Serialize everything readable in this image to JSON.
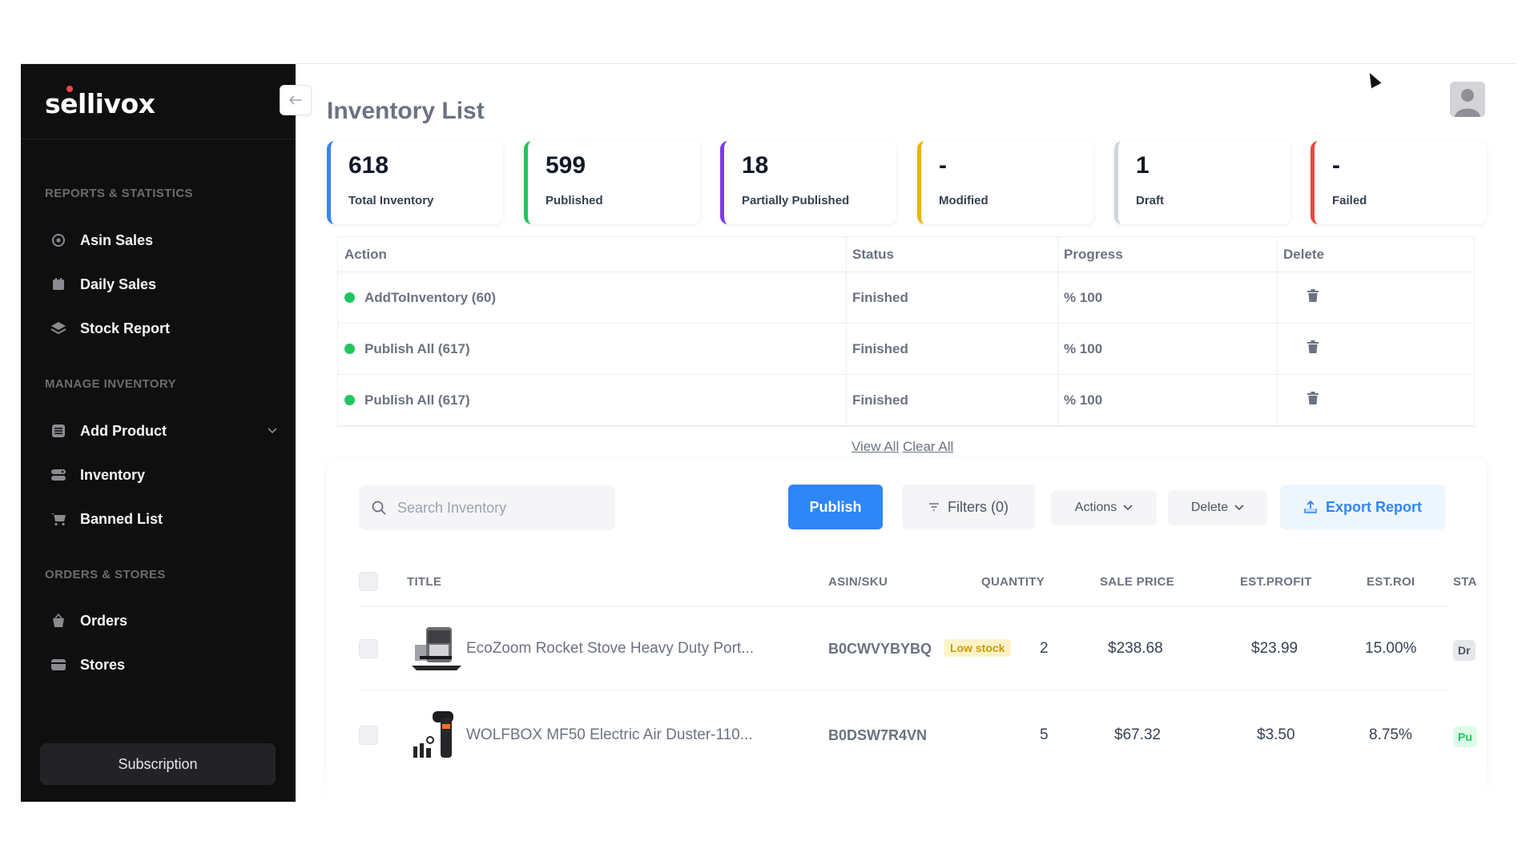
{
  "app": {
    "logo": "sellivox"
  },
  "sidebar": {
    "sections": [
      {
        "title": "REPORTS & STATISTICS",
        "items": [
          {
            "label": "Asin Sales",
            "icon": "target-icon"
          },
          {
            "label": "Daily Sales",
            "icon": "calendar-icon"
          },
          {
            "label": "Stock Report",
            "icon": "layers-icon"
          }
        ]
      },
      {
        "title": "MANAGE INVENTORY",
        "items": [
          {
            "label": "Add Product",
            "icon": "list-icon"
          },
          {
            "label": "Inventory",
            "icon": "database-icon"
          },
          {
            "label": "Banned List",
            "icon": "cart-icon"
          }
        ]
      },
      {
        "title": "ORDERS & STORES",
        "items": [
          {
            "label": "Orders",
            "icon": "basket-icon"
          },
          {
            "label": "Stores",
            "icon": "store-icon"
          }
        ]
      }
    ],
    "subscription": "Subscription"
  },
  "page": {
    "title": "Inventory List"
  },
  "stats": [
    {
      "value": "618",
      "label": "Total Inventory",
      "color": "#3b82f6"
    },
    {
      "value": "599",
      "label": "Published",
      "color": "#22c55e"
    },
    {
      "value": "18",
      "label": "Partially Published",
      "color": "#7c3aed"
    },
    {
      "value": "-",
      "label": "Modified",
      "color": "#eab308"
    },
    {
      "value": "1",
      "label": "Draft",
      "color": "#d1d5db"
    },
    {
      "value": "-",
      "label": "Failed",
      "color": "#ef4444"
    }
  ],
  "actions_table": {
    "headers": {
      "action": "Action",
      "status": "Status",
      "progress": "Progress",
      "delete": "Delete"
    },
    "rows": [
      {
        "action": "AddToInventory (60)",
        "status": "Finished",
        "progress": "% 100"
      },
      {
        "action": "Publish All (617)",
        "status": "Finished",
        "progress": "% 100"
      },
      {
        "action": "Publish All (617)",
        "status": "Finished",
        "progress": "% 100"
      }
    ],
    "view_all": "View All",
    "clear_all": "Clear All"
  },
  "toolbar": {
    "search_placeholder": "Search Inventory",
    "publish": "Publish",
    "filters": "Filters (0)",
    "actions": "Actions",
    "delete": "Delete",
    "export": "Export Report"
  },
  "inventory": {
    "headers": {
      "title": "TITLE",
      "asin": "ASIN/SKU",
      "quantity": "QUANTITY",
      "sale_price": "SALE PRICE",
      "est_profit": "EST.PROFIT",
      "est_roi": "EST.ROI",
      "status": "STA"
    },
    "rows": [
      {
        "title": "EcoZoom Rocket Stove Heavy Duty Port...",
        "asin": "B0CWVYBYBQ",
        "badge": "Low stock",
        "quantity": "2",
        "sale_price": "$238.68",
        "est_profit": "$23.99",
        "est_roi": "15.00%",
        "status": "Dr",
        "status_bg": "#e5e7eb",
        "status_color": "#4b5563"
      },
      {
        "title": "WOLFBOX MF50 Electric Air Duster-110...",
        "asin": "B0DSW7R4VN",
        "badge": "",
        "quantity": "5",
        "sale_price": "$67.32",
        "est_profit": "$3.50",
        "est_roi": "8.75%",
        "status": "Pu",
        "status_bg": "#dcfce7",
        "status_color": "#22c55e"
      }
    ]
  }
}
